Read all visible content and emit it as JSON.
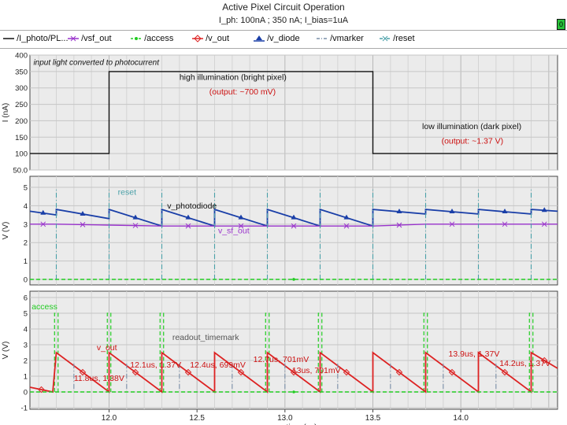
{
  "window": {
    "title": "Active Pixel Circuit Operation",
    "subtitle": "I_ph: 100nA ; 350 nA; I_bias=1uA",
    "indicator": "0"
  },
  "legend": [
    {
      "label": "/I_photo/PL...",
      "color": "#111111",
      "marker": "none",
      "dash": "solid"
    },
    {
      "label": "/vsf_out",
      "color": "#9933cc",
      "marker": "x",
      "dash": "solid"
    },
    {
      "label": "/access",
      "color": "#22cc22",
      "marker": "dot",
      "dash": "dashed"
    },
    {
      "label": "/v_out",
      "color": "#dd2222",
      "marker": "diamond",
      "dash": "solid"
    },
    {
      "label": "/v_diode",
      "color": "#1a3fa8",
      "marker": "triangle",
      "dash": "solid"
    },
    {
      "label": "/vmarker",
      "color": "#7a8fa8",
      "marker": "none",
      "dash": "dashdot"
    },
    {
      "label": "/reset",
      "color": "#4aa0a8",
      "marker": "x",
      "dash": "dashdot"
    }
  ],
  "chart_data": [
    {
      "type": "line",
      "panel": "photocurrent",
      "ylabel": "I (nA)",
      "ylim": [
        50,
        400
      ],
      "yticks": [
        50,
        100,
        150,
        200,
        250,
        300,
        350,
        400
      ],
      "ytick_labels": [
        "50.0",
        "100",
        "150",
        "200",
        "250",
        "300",
        "350",
        "400"
      ],
      "xlim": [
        11.55,
        14.55
      ],
      "grid": true,
      "series": [
        {
          "name": "/I_photo/PL...",
          "x": [
            11.55,
            12.0,
            12.0,
            13.5,
            13.5,
            14.55
          ],
          "y": [
            100,
            100,
            350,
            350,
            100,
            100
          ]
        }
      ],
      "annotations": [
        {
          "text": "input light converted to photocurrent",
          "x": 11.57,
          "y": 370,
          "color": "#111111"
        },
        {
          "text": "high illumination (bright pixel)",
          "x": 12.4,
          "y": 325,
          "color": "#111111"
        },
        {
          "text": "(output: ~700 mV)",
          "x": 12.57,
          "y": 280,
          "color": "#cc1111"
        },
        {
          "text": "low illumination (dark pixel)",
          "x": 13.78,
          "y": 175,
          "color": "#111111"
        },
        {
          "text": "(output: ~1.37 V)",
          "x": 13.89,
          "y": 130,
          "color": "#cc1111"
        }
      ]
    },
    {
      "type": "line",
      "panel": "photodiode",
      "ylabel": "V (V)",
      "ylim": [
        -0.3,
        5.6
      ],
      "yticks": [
        0,
        1,
        2,
        3,
        4,
        5
      ],
      "ytick_labels": [
        "0",
        "1",
        "2",
        "3",
        "4",
        "5"
      ],
      "xlim": [
        11.55,
        14.55
      ],
      "grid": true,
      "series": [
        {
          "name": "/v_diode",
          "x": [
            11.55,
            11.7,
            11.7,
            12.0,
            12.0,
            12.3,
            12.3,
            12.6,
            12.6,
            12.9,
            12.9,
            13.2,
            13.2,
            13.5,
            13.5,
            13.8,
            13.8,
            14.1,
            14.1,
            14.4,
            14.4,
            14.55
          ],
          "y": [
            3.7,
            3.5,
            3.8,
            3.3,
            3.8,
            2.9,
            3.8,
            2.9,
            3.8,
            2.9,
            3.8,
            2.9,
            3.8,
            2.9,
            3.8,
            3.55,
            3.8,
            3.55,
            3.8,
            3.55,
            3.8,
            3.7
          ]
        },
        {
          "name": "/vsf_out",
          "x": [
            11.55,
            11.7,
            12.0,
            12.3,
            12.6,
            12.9,
            13.2,
            13.5,
            13.8,
            14.1,
            14.4,
            14.55
          ],
          "y": [
            3.0,
            3.0,
            2.95,
            2.9,
            2.9,
            2.9,
            2.9,
            2.9,
            3.0,
            3.0,
            3.0,
            3.0
          ]
        },
        {
          "name": "/reset",
          "x": [
            11.7,
            12.0,
            12.3,
            12.6,
            12.9,
            13.2,
            13.5,
            13.8,
            14.1,
            14.4
          ],
          "y": [
            5.0,
            5.0,
            5.0,
            5.0,
            5.0,
            5.0,
            5.0,
            5.0,
            5.0,
            5.0
          ]
        },
        {
          "name": "/access",
          "x": [
            11.55,
            14.55
          ],
          "y": [
            0,
            0
          ]
        }
      ],
      "annotations": [
        {
          "text": "reset",
          "x": 12.05,
          "y": 4.6,
          "color": "#4aa0a8"
        },
        {
          "text": "v_photodiode",
          "x": 12.33,
          "y": 3.85,
          "color": "#111111"
        },
        {
          "text": "v_sf_out",
          "x": 12.62,
          "y": 2.5,
          "color": "#9933cc"
        }
      ]
    },
    {
      "type": "line",
      "panel": "output",
      "ylabel": "V (V)",
      "xlabel": "time (us)",
      "ylim": [
        -1.1,
        6.4
      ],
      "yticks": [
        -1,
        0,
        1,
        2,
        3,
        4,
        5,
        6
      ],
      "ytick_labels": [
        "-1",
        "0",
        "1",
        "2",
        "3",
        "4",
        "5",
        "6"
      ],
      "xlim": [
        11.55,
        14.55
      ],
      "xticks": [
        12.0,
        12.5,
        13.0,
        13.5,
        14.0
      ],
      "xtick_labels": [
        "12.0",
        "12.5",
        "13.0",
        "13.5",
        "14.0"
      ],
      "grid": true,
      "series": [
        {
          "name": "/v_out",
          "x": [
            11.55,
            11.68,
            11.7,
            12.0,
            12.0,
            12.3,
            12.3,
            12.6,
            12.6,
            12.9,
            12.9,
            13.2,
            13.2,
            13.5,
            13.5,
            13.8,
            13.8,
            14.1,
            14.1,
            14.4,
            14.4,
            14.55
          ],
          "y": [
            0.3,
            0.0,
            2.5,
            0.0,
            2.5,
            0.0,
            2.5,
            0.0,
            2.5,
            0.0,
            2.5,
            0.0,
            2.5,
            0.0,
            2.5,
            0.0,
            2.5,
            0.0,
            2.5,
            0.0,
            2.5,
            1.5
          ]
        },
        {
          "name": "/access",
          "x": [
            11.55,
            14.55
          ],
          "y": [
            0,
            0
          ]
        },
        {
          "name": "/vmarker",
          "x": [
            11.8,
            12.1,
            12.4,
            12.7,
            13.0,
            13.3,
            13.6,
            13.9,
            14.2
          ],
          "y": [
            1.9,
            1.9,
            1.9,
            1.9,
            1.9,
            1.9,
            1.9,
            1.9,
            1.9
          ]
        }
      ],
      "access_pulses": [
        11.7,
        12.0,
        12.3,
        12.9,
        13.2,
        13.8,
        14.4
      ],
      "annotations": [
        {
          "text": "access",
          "x": 11.56,
          "y": 5.25,
          "color": "#22cc22"
        },
        {
          "text": "readout_timemark",
          "x": 12.36,
          "y": 3.3,
          "color": "#555555"
        },
        {
          "text": "v_out",
          "x": 11.93,
          "y": 2.65,
          "color": "#cc1111"
        },
        {
          "text": "11.8us, 1.38V",
          "x": 11.8,
          "y": 0.7,
          "color": "#cc1111"
        },
        {
          "text": "12.1us, 1.37V",
          "x": 12.12,
          "y": 1.55,
          "color": "#cc1111"
        },
        {
          "text": "12.4us, 699mV",
          "x": 12.46,
          "y": 1.55,
          "color": "#cc1111"
        },
        {
          "text": "12.7us, 701mV",
          "x": 12.82,
          "y": 1.9,
          "color": "#cc1111"
        },
        {
          "text": "13us, 701mV",
          "x": 13.04,
          "y": 1.2,
          "color": "#cc1111"
        },
        {
          "text": "13.9us, 1.37V",
          "x": 13.93,
          "y": 2.25,
          "color": "#cc1111"
        },
        {
          "text": "14.2us, 1.37V",
          "x": 14.22,
          "y": 1.65,
          "color": "#cc1111"
        }
      ]
    }
  ]
}
